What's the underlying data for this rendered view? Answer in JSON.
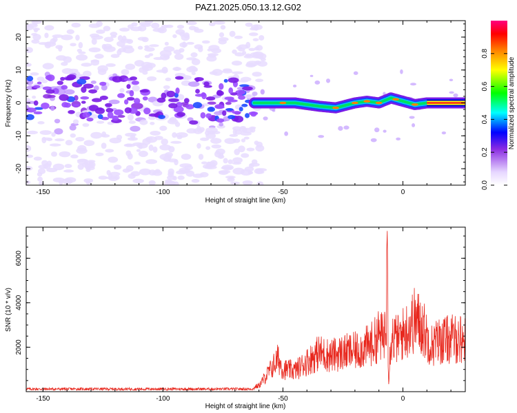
{
  "title": "PAZ1.2025.050.13.12.G02",
  "chart_data": [
    {
      "type": "heatmap",
      "xlabel": "Height of straight line (km)",
      "ylabel": "Frequency (Hz)",
      "xlim": [
        -157,
        26
      ],
      "ylim": [
        -25,
        25
      ],
      "x_ticks": [
        -150,
        -100,
        -50,
        0
      ],
      "y_ticks": [
        -20,
        -10,
        0,
        10,
        20
      ],
      "colorbar": {
        "label": "Normalized spectral amplitude",
        "range": [
          0,
          1
        ],
        "ticks": [
          "0.0",
          "0.2",
          "0.4",
          "0.6",
          "0.8"
        ],
        "colormap": "rainbow",
        "colors": [
          "#ffffff",
          "#e6d6ff",
          "#8a2be2",
          "#0000ff",
          "#00ffff",
          "#00ff00",
          "#ffff00",
          "#ff8000",
          "#ff0000",
          "#ff007f"
        ]
      },
      "ridge": {
        "description_points": [
          {
            "x": -62,
            "y": 0
          },
          {
            "x": -55,
            "y": 0
          },
          {
            "x": -45,
            "y": 0
          },
          {
            "x": -35,
            "y": -1
          },
          {
            "x": -28,
            "y": -1.5
          },
          {
            "x": -20,
            "y": 0
          },
          {
            "x": -15,
            "y": 0.5
          },
          {
            "x": -10,
            "y": 0
          },
          {
            "x": -5,
            "y": 1.5
          },
          {
            "x": 0,
            "y": 0.5
          },
          {
            "x": 5,
            "y": -0.5
          },
          {
            "x": 10,
            "y": 0
          },
          {
            "x": 26,
            "y": 0
          }
        ],
        "strong_segment_x": [
          10,
          26
        ]
      },
      "noise_region_x": [
        -157,
        -62
      ]
    },
    {
      "type": "line",
      "xlabel": "Height of straight line (km)",
      "ylabel": "SNR (10 * v/v)",
      "xlim": [
        -157,
        26
      ],
      "ylim": [
        0,
        7400
      ],
      "x_ticks": [
        -150,
        -100,
        -50,
        0
      ],
      "y_ticks": [
        2000,
        4000,
        6000
      ],
      "line_color": "#e8271d",
      "envelope": [
        {
          "x": -157,
          "y": 150
        },
        {
          "x": -100,
          "y": 150
        },
        {
          "x": -65,
          "y": 160
        },
        {
          "x": -60,
          "y": 400
        },
        {
          "x": -55,
          "y": 1500
        },
        {
          "x": -52,
          "y": 2200
        },
        {
          "x": -50,
          "y": 1500
        },
        {
          "x": -45,
          "y": 1400
        },
        {
          "x": -40,
          "y": 2000
        },
        {
          "x": -35,
          "y": 2600
        },
        {
          "x": -30,
          "y": 2400
        },
        {
          "x": -25,
          "y": 2600
        },
        {
          "x": -20,
          "y": 2700
        },
        {
          "x": -15,
          "y": 3000
        },
        {
          "x": -12,
          "y": 3300
        },
        {
          "x": -10,
          "y": 3800
        },
        {
          "x": -8,
          "y": 3500
        },
        {
          "x": -7,
          "y": 5500
        },
        {
          "x": -6.5,
          "y": 7300
        },
        {
          "x": -6,
          "y": 600
        },
        {
          "x": -5,
          "y": 3700
        },
        {
          "x": -2,
          "y": 3500
        },
        {
          "x": 2,
          "y": 4200
        },
        {
          "x": 5,
          "y": 4800
        },
        {
          "x": 8,
          "y": 4400
        },
        {
          "x": 10,
          "y": 3700
        },
        {
          "x": 12,
          "y": 3100
        },
        {
          "x": 15,
          "y": 3400
        },
        {
          "x": 20,
          "y": 3500
        },
        {
          "x": 26,
          "y": 3500
        }
      ]
    }
  ]
}
